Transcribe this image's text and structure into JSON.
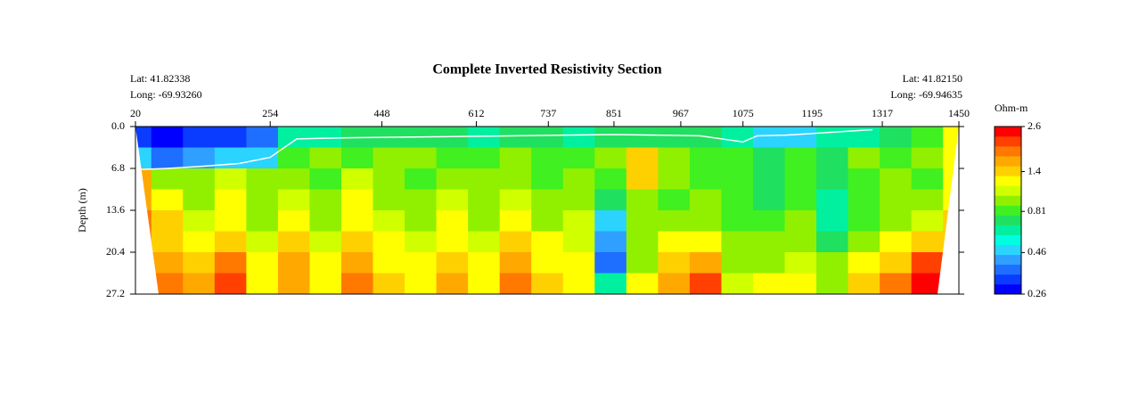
{
  "chart_data": {
    "type": "section",
    "title": "Complete Inverted Resistivity Section",
    "start_lat": "Lat: 41.82338",
    "start_long": "Long: -69.93260",
    "end_lat": "Lat: 41.82150",
    "end_long": "Long: -69.94635",
    "ylabel": "Depth (m)",
    "zlabel": "Ohm-m",
    "xlim": [
      20,
      1450
    ],
    "xticks": [
      20,
      254,
      448,
      612,
      737,
      851,
      967,
      1075,
      1195,
      1317,
      1450
    ],
    "ylim": [
      0,
      27.2
    ],
    "yticks": [
      {
        "value": 0,
        "label": "0.0"
      },
      6.8,
      13.6,
      20.4,
      27.2
    ],
    "zlim": [
      0.26,
      2.6
    ],
    "zticks": [
      0.26,
      0.46,
      0.81,
      1.4,
      2.6
    ],
    "zlog": true,
    "colorscale": [
      "#0000ff",
      "#0a3cff",
      "#1e6eff",
      "#2fa0ff",
      "#2ad4ff",
      "#00ffe0",
      "#00f0a0",
      "#20e060",
      "#40f020",
      "#90f000",
      "#d0ff00",
      "#ffff00",
      "#ffd000",
      "#ffa800",
      "#ff7800",
      "#ff4000",
      "#ff0000"
    ],
    "x": [
      20,
      75,
      130,
      185,
      240,
      295,
      350,
      405,
      460,
      515,
      570,
      625,
      680,
      735,
      790,
      845,
      900,
      955,
      1010,
      1065,
      1120,
      1175,
      1230,
      1285,
      1340,
      1395,
      1450
    ],
    "depth": [
      1.7,
      5.1,
      8.5,
      11.9,
      15.3,
      18.7,
      22.1,
      25.5
    ],
    "z": [
      [
        0.3,
        0.28,
        0.3,
        0.32,
        0.35,
        0.6,
        0.65,
        0.7,
        0.7,
        0.75,
        0.7,
        0.65,
        0.7,
        0.7,
        0.65,
        0.7,
        0.7,
        0.75,
        0.7,
        0.6,
        0.45,
        0.5,
        0.6,
        0.65,
        0.7,
        0.8,
        1.3
      ],
      [
        0.5,
        0.35,
        0.4,
        0.45,
        0.5,
        0.8,
        0.9,
        0.85,
        1.0,
        0.9,
        0.8,
        0.85,
        0.9,
        0.85,
        0.8,
        0.9,
        1.5,
        0.9,
        0.85,
        0.8,
        0.7,
        0.8,
        0.75,
        0.9,
        0.85,
        0.9,
        1.2
      ],
      [
        1.6,
        1.0,
        0.9,
        1.1,
        0.9,
        1.0,
        0.85,
        1.1,
        0.9,
        0.85,
        1.0,
        0.9,
        1.0,
        0.85,
        0.9,
        0.8,
        1.5,
        0.9,
        0.8,
        0.85,
        0.75,
        0.8,
        0.7,
        0.8,
        0.9,
        0.85,
        1.3
      ],
      [
        1.7,
        1.3,
        1.0,
        1.2,
        0.9,
        1.1,
        0.9,
        1.2,
        1.0,
        0.9,
        1.1,
        0.95,
        1.1,
        0.9,
        1.0,
        0.7,
        0.9,
        0.85,
        0.9,
        0.8,
        0.7,
        0.85,
        0.65,
        0.8,
        0.9,
        0.9,
        1.3
      ],
      [
        1.8,
        1.4,
        1.1,
        1.3,
        1.0,
        1.2,
        1.0,
        1.3,
        1.1,
        1.0,
        1.2,
        1.0,
        1.2,
        1.0,
        1.1,
        0.5,
        0.9,
        1.0,
        1.0,
        0.85,
        0.8,
        0.9,
        0.6,
        0.85,
        1.0,
        1.1,
        1.4
      ],
      [
        1.9,
        1.5,
        1.2,
        1.5,
        1.1,
        1.4,
        1.1,
        1.4,
        1.2,
        1.1,
        1.3,
        1.1,
        1.4,
        1.2,
        1.1,
        0.4,
        0.9,
        1.2,
        1.2,
        0.9,
        0.9,
        1.0,
        0.7,
        0.9,
        1.2,
        1.4,
        1.5
      ],
      [
        2.0,
        1.7,
        1.4,
        1.8,
        1.2,
        1.6,
        1.2,
        1.6,
        1.3,
        1.2,
        1.5,
        1.2,
        1.6,
        1.3,
        1.2,
        0.35,
        1.0,
        1.4,
        1.6,
        1.0,
        1.0,
        1.1,
        0.9,
        1.2,
        1.5,
        2.0,
        1.6
      ],
      [
        2.0,
        1.9,
        1.6,
        2.1,
        1.3,
        1.7,
        1.3,
        1.8,
        1.4,
        1.3,
        1.6,
        1.3,
        1.8,
        1.5,
        1.3,
        0.6,
        1.2,
        1.6,
        2.1,
        1.1,
        1.2,
        1.3,
        1.0,
        1.4,
        1.8,
        2.5,
        1.6
      ]
    ],
    "line": {
      "color": "#ffffff",
      "x": [
        20,
        75,
        130,
        200,
        254,
        300,
        400,
        600,
        850,
        1000,
        1075,
        1100,
        1150,
        1300
      ],
      "values": [
        7.0,
        6.8,
        6.5,
        6.0,
        5.0,
        2.0,
        1.8,
        1.6,
        1.3,
        1.5,
        2.5,
        1.5,
        1.4,
        0.5
      ]
    }
  }
}
